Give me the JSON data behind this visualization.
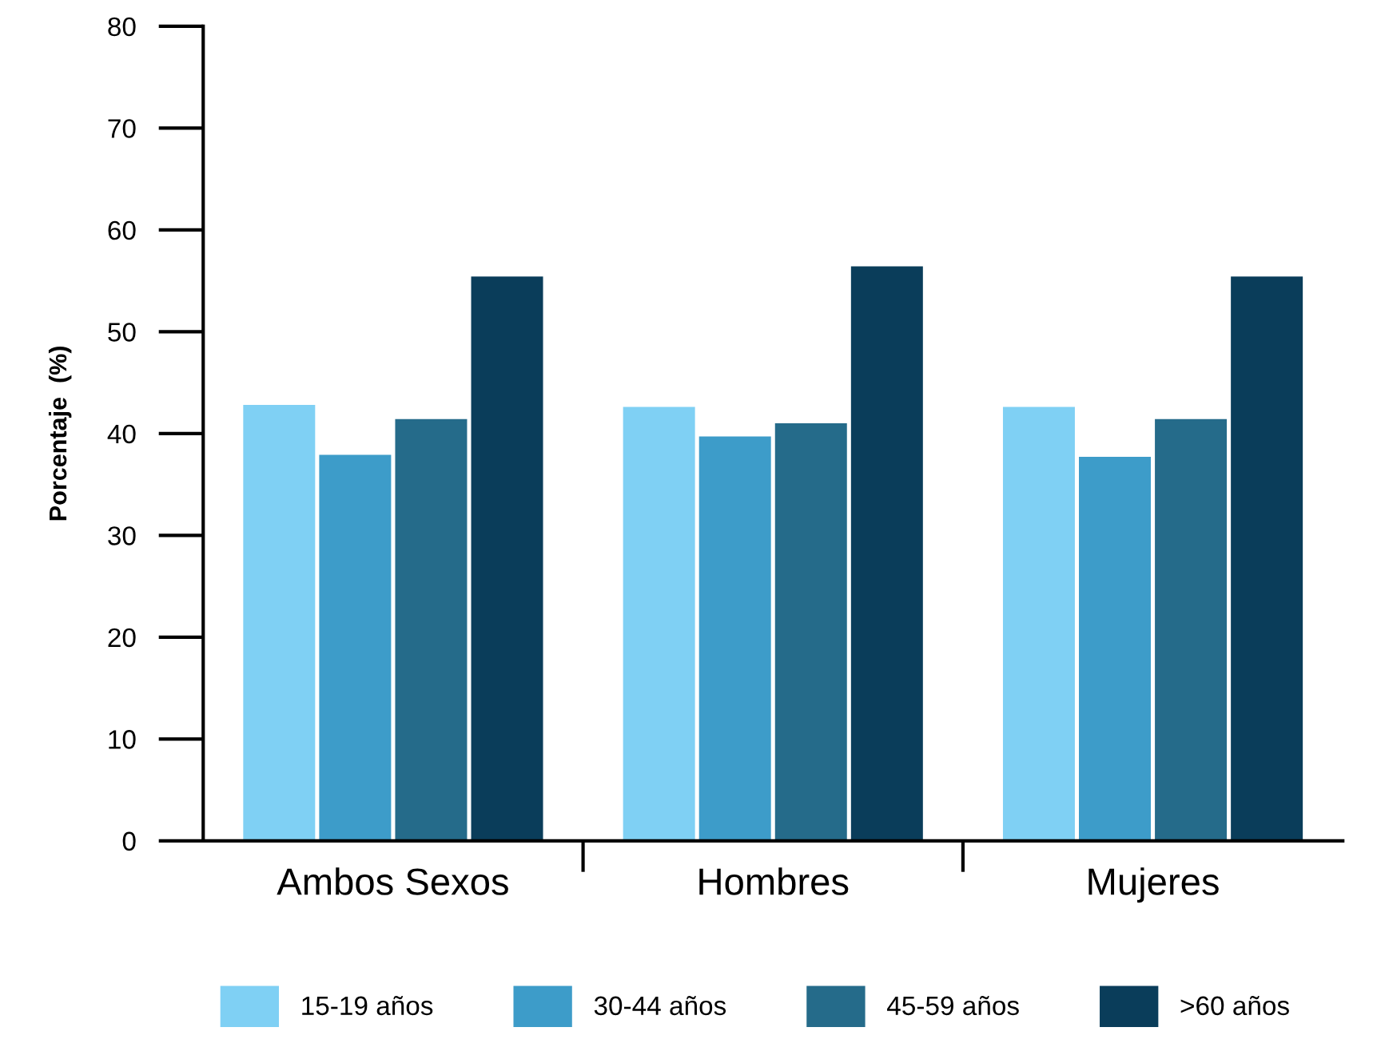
{
  "chart_data": {
    "type": "bar",
    "ylabel": "Porcentaje  (%)",
    "categories": [
      "Ambos Sexos",
      "Hombres",
      "Mujeres"
    ],
    "series": [
      {
        "name": "15-19 años",
        "color": "#7fd0f4",
        "values": [
          42.9,
          42.7,
          42.7
        ]
      },
      {
        "name": "30-44 años",
        "color": "#3d9cc9",
        "values": [
          38.0,
          39.8,
          37.8
        ]
      },
      {
        "name": "45-59 años",
        "color": "#256b8a",
        "values": [
          41.5,
          41.1,
          41.5
        ]
      },
      {
        "name": ">60 años",
        "color": "#0a3d5a",
        "values": [
          55.5,
          56.5,
          55.5
        ]
      }
    ],
    "ylim": [
      0,
      80
    ],
    "yticks": [
      0,
      10,
      20,
      30,
      40,
      50,
      60,
      70,
      80
    ],
    "grid": false,
    "legend": "bottom"
  }
}
